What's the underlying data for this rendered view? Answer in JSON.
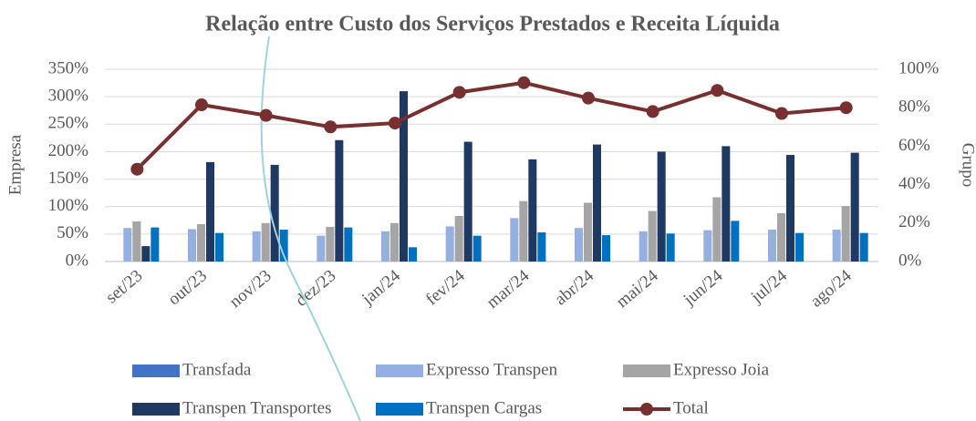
{
  "chart_data": {
    "type": "bar_line",
    "title": "Relação entre Custo dos Serviços Prestados e Receita Líquida",
    "y_label": "Empresa",
    "y2_label": "Grupo",
    "categories": [
      "set/23",
      "out/23",
      "nov/23",
      "dez/23",
      "jan/24",
      "fev/24",
      "mar/24",
      "abr/24",
      "mai/24",
      "jun/24",
      "jul/24",
      "ago/24"
    ],
    "series": [
      {
        "name": "Transfada",
        "color": "#4472c4",
        "values": [
          0,
          0,
          0,
          0,
          0,
          0,
          0,
          0,
          0,
          0,
          0,
          0
        ]
      },
      {
        "name": "Expresso Transpen",
        "color": "#94afe0",
        "values": [
          61,
          59,
          55,
          47,
          55,
          64,
          79,
          61,
          55,
          57,
          58,
          58
        ]
      },
      {
        "name": "Expresso Joia",
        "color": "#a5a5a5",
        "values": [
          73,
          68,
          70,
          63,
          70,
          83,
          110,
          107,
          92,
          117,
          88,
          101
        ]
      },
      {
        "name": "Transpen Transportes",
        "color": "#203864",
        "values": [
          28,
          181,
          176,
          221,
          310,
          218,
          186,
          213,
          200,
          210,
          194,
          198
        ]
      },
      {
        "name": "Transpen Cargas",
        "color": "#0070c0",
        "values": [
          62,
          52,
          58,
          62,
          26,
          47,
          53,
          48,
          51,
          74,
          52,
          52
        ]
      },
      {
        "name": "Total",
        "color": "#772f2f",
        "axis": "y2",
        "kind": "line",
        "values": [
          48,
          81.5,
          76,
          70,
          72,
          88,
          93,
          85,
          78,
          89,
          77,
          80
        ]
      }
    ],
    "ylim": [
      0,
      350
    ],
    "yticks": [
      {
        "value": 0,
        "label": "0%"
      },
      {
        "value": 50,
        "label": "50%"
      },
      {
        "value": 100,
        "label": "100%"
      },
      {
        "value": 150,
        "label": "150%"
      },
      {
        "value": 200,
        "label": "200%"
      },
      {
        "value": 250,
        "label": "250%"
      },
      {
        "value": 300,
        "label": "300%"
      },
      {
        "value": 350,
        "label": "350%"
      }
    ],
    "y2lim": [
      0,
      100
    ],
    "y2ticks": [
      {
        "value": 0,
        "label": "0%"
      },
      {
        "value": 20,
        "label": "20%"
      },
      {
        "value": 40,
        "label": "40%"
      },
      {
        "value": 60,
        "label": "60%"
      },
      {
        "value": 80,
        "label": "80%"
      },
      {
        "value": 100,
        "label": "100%"
      }
    ],
    "grid": true,
    "legend": "bottom"
  }
}
